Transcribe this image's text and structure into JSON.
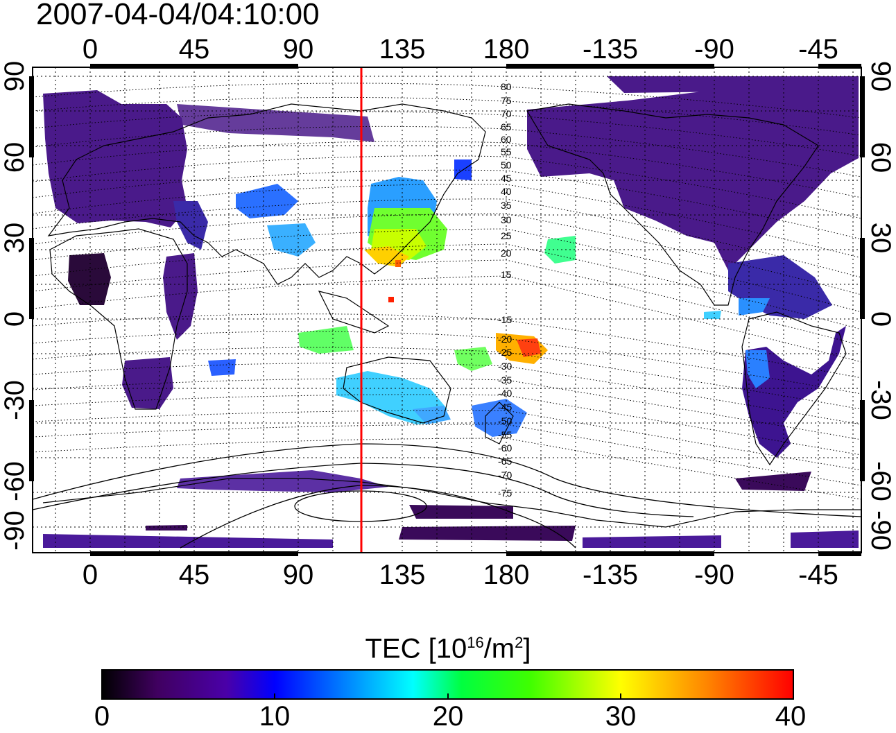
{
  "title": "2007-04-04/04:10:00",
  "map": {
    "top_lon_labels": [
      "0",
      "45",
      "90",
      "135",
      "180",
      "-135",
      "-90",
      "-45"
    ],
    "bottom_lon_labels": [
      "0",
      "45",
      "90",
      "135",
      "180",
      "-135",
      "-90",
      "-45"
    ],
    "left_lat_labels": [
      "90",
      "60",
      "30",
      "0",
      "-30",
      "-60",
      "-90"
    ],
    "right_lat_labels": [
      "90",
      "60",
      "30",
      "0",
      "-30",
      "-60",
      "-90"
    ],
    "meridian_marker_lon": 120,
    "meridian_marker_color": "#ff0000",
    "contour_labels_north": [
      "80",
      "75",
      "70",
      "65",
      "60",
      "55",
      "50",
      "45",
      "40",
      "35",
      "30",
      "25",
      "20",
      "15"
    ],
    "contour_labels_south": [
      "-15",
      "-20",
      "-25",
      "-30",
      "-35",
      "-40",
      "-45",
      "-50",
      "-55",
      "-60",
      "-65",
      "-70",
      "-75"
    ]
  },
  "colorbar": {
    "title_main": "TEC  [10",
    "title_sup1": "16",
    "title_mid": "/m",
    "title_sup2": "2",
    "title_end": "]",
    "ticks": [
      "0",
      "10",
      "20",
      "30",
      "40"
    ],
    "min": 0,
    "max": 40,
    "stops": [
      "#000000",
      "#400060",
      "#4a00a8",
      "#0000ff",
      "#0080ff",
      "#00ffff",
      "#00ff40",
      "#40ff00",
      "#ffff00",
      "#ff8000",
      "#ff0000"
    ]
  }
}
